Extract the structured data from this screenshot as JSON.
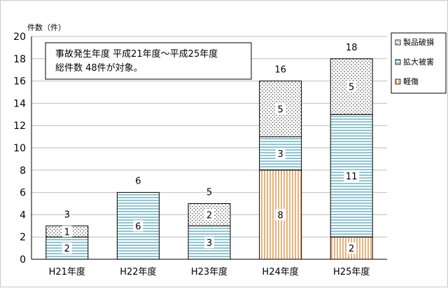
{
  "chart_data": {
    "type": "bar",
    "stacked": true,
    "title": "",
    "xlabel": "",
    "ylabel": "件数（件）",
    "ylim": [
      0,
      20
    ],
    "ytick_step": 2,
    "grid": "horizontal",
    "legend_position": "right",
    "categories": [
      "H21年度",
      "H22年度",
      "H23年度",
      "H24年度",
      "H25年度"
    ],
    "series": [
      {
        "name": "軽傷",
        "values": [
          0,
          0,
          0,
          8,
          2
        ],
        "pattern": "vertical-stripes",
        "color": "#e8a86a"
      },
      {
        "name": "拡大被害",
        "values": [
          2,
          6,
          3,
          3,
          11
        ],
        "pattern": "horizontal-stripes",
        "color": "#6fb3c6"
      },
      {
        "name": "製品破損",
        "values": [
          1,
          0,
          2,
          5,
          5
        ],
        "pattern": "dots",
        "color": "#555555"
      }
    ],
    "totals": [
      3,
      6,
      5,
      16,
      18
    ],
    "annotation": [
      "事故発生年度 平成21年度～平成25年度",
      "総件数 48件が対象。"
    ]
  }
}
